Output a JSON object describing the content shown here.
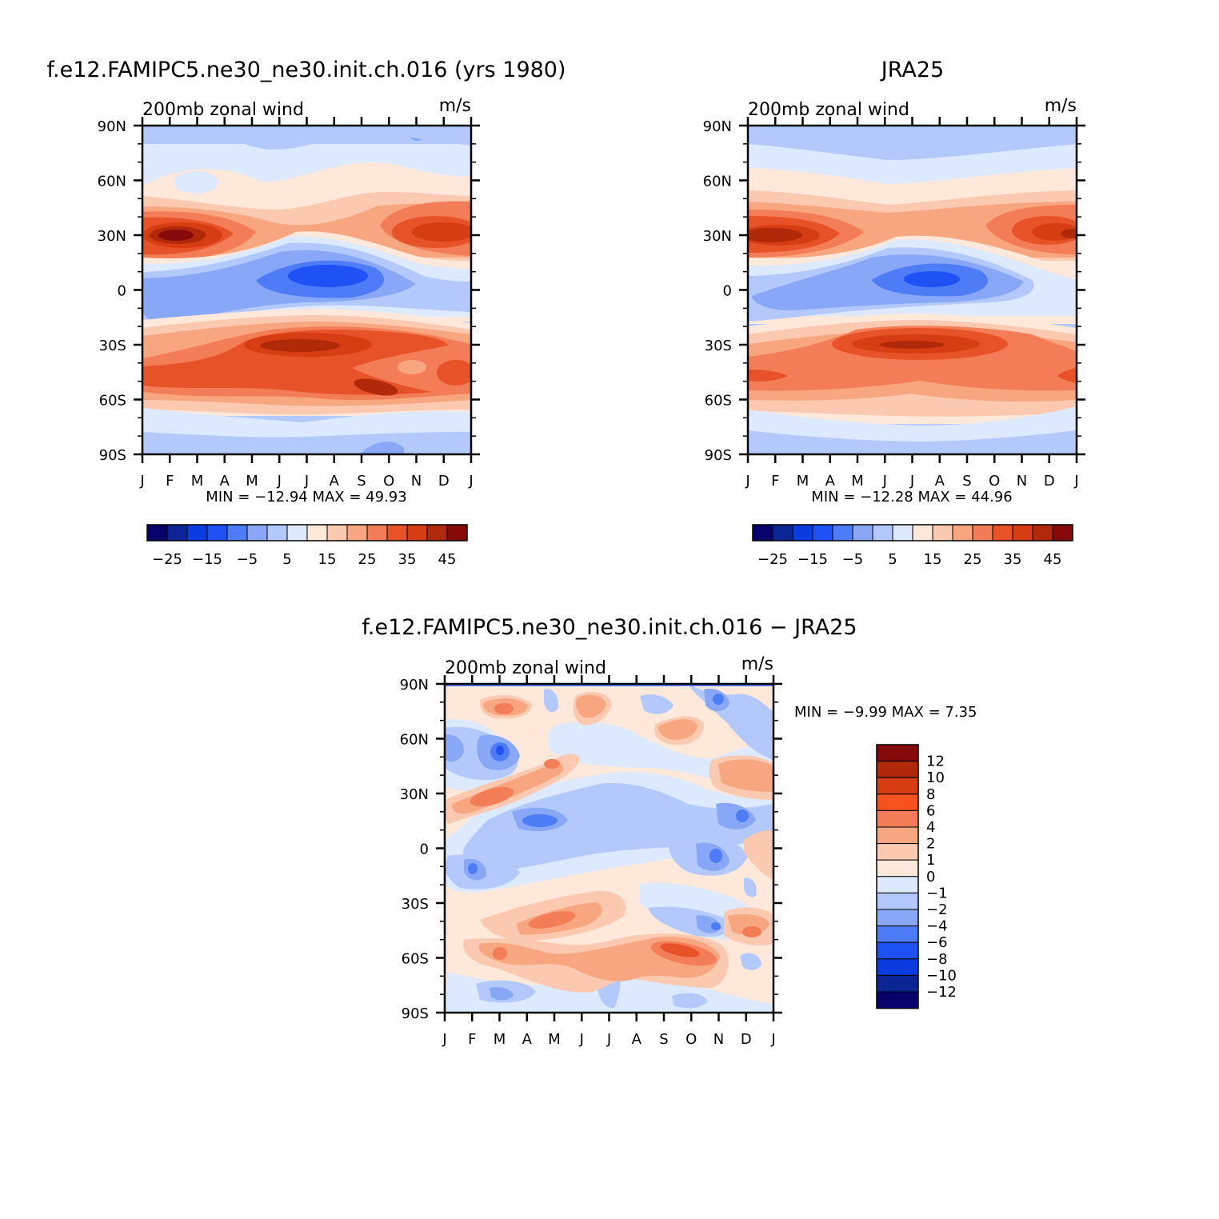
{
  "colors": {
    "palette_abs": [
      "#08006b",
      "#0b2595",
      "#0a3ce0",
      "#1f52f5",
      "#4d7cf6",
      "#88a8f7",
      "#b3c8fb",
      "#dde9fe",
      "#fde8da",
      "#fbc8b0",
      "#f8a680",
      "#f27d56",
      "#e85228",
      "#d73d12",
      "#b02a09",
      "#870a0a"
    ],
    "palette_diff": [
      "#870a0a",
      "#b02a09",
      "#d73d12",
      "#f5521e",
      "#f27d56",
      "#f8a680",
      "#fbc8b0",
      "#fde8da",
      "#dde9fe",
      "#b3c8fb",
      "#88a8f7",
      "#4d7cf6",
      "#1f52f5",
      "#0a3ce0",
      "#0b2595",
      "#08006b"
    ]
  },
  "panels": [
    {
      "id": "model",
      "title": "f.e12.FAMIPC5.ne30_ne30.init.ch.016 (yrs 1980)",
      "left_label": "200mb zonal wind",
      "right_label": "m/s",
      "stats_text": "MIN = −12.94 MAX =   49.93",
      "colorbar_labels": [
        "−25",
        "−15",
        "−5",
        "5",
        "15",
        "25",
        "35",
        "45"
      ]
    },
    {
      "id": "obs",
      "title": "JRA25",
      "left_label": "200mb zonal wind",
      "right_label": "m/s",
      "stats_text": "MIN = −12.28 MAX =   44.96",
      "colorbar_labels": [
        "−25",
        "−15",
        "−5",
        "5",
        "15",
        "25",
        "35",
        "45"
      ]
    },
    {
      "id": "diff",
      "title": "f.e12.FAMIPC5.ne30_ne30.init.ch.016 − JRA25",
      "left_label": "200mb zonal wind",
      "right_label": "m/s",
      "stats_text": "MIN =   −9.99 MAX =     7.35",
      "colorbar_labels": [
        "12",
        "10",
        "8",
        "6",
        "4",
        "2",
        "1",
        "0",
        "−1",
        "−2",
        "−4",
        "−6",
        "−8",
        "−10",
        "−12"
      ]
    }
  ],
  "chart_data": [
    {
      "type": "heatmap",
      "title": "f.e12.FAMIPC5.ne30_ne30.init.ch.016 (yrs 1980)",
      "x_categories": [
        "J",
        "F",
        "M",
        "A",
        "M",
        "J",
        "J",
        "A",
        "S",
        "O",
        "N",
        "D",
        "J"
      ],
      "y_ticks": [
        "90N",
        "60N",
        "30N",
        "0",
        "30S",
        "60S",
        "90S"
      ],
      "ylim": [
        -90,
        90
      ],
      "units": "m/s",
      "min": -12.94,
      "max": 49.93,
      "contour_levels": [
        -30,
        -25,
        -20,
        -15,
        -10,
        -5,
        0,
        5,
        10,
        15,
        20,
        25,
        30,
        35,
        40,
        45,
        50
      ],
      "features": [
        {
          "kind": "max",
          "lat": 30,
          "month_index": 1,
          "value": 49
        },
        {
          "kind": "max",
          "lat": 33,
          "month_index": 12,
          "value": 42
        },
        {
          "kind": "max",
          "lat": -30,
          "month_index": 6,
          "value": 42
        },
        {
          "kind": "max",
          "lat": -52,
          "month_index": 8.2,
          "value": 38
        },
        {
          "kind": "min",
          "lat": 5,
          "month_index": 6.8,
          "value": -12
        }
      ]
    },
    {
      "type": "heatmap",
      "title": "JRA25",
      "x_categories": [
        "J",
        "F",
        "M",
        "A",
        "M",
        "J",
        "J",
        "A",
        "S",
        "O",
        "N",
        "D",
        "J"
      ],
      "y_ticks": [
        "90N",
        "60N",
        "30N",
        "0",
        "30S",
        "60S",
        "90S"
      ],
      "ylim": [
        -90,
        90
      ],
      "units": "m/s",
      "min": -12.28,
      "max": 44.96,
      "contour_levels": [
        -30,
        -25,
        -20,
        -15,
        -10,
        -5,
        0,
        5,
        10,
        15,
        20,
        25,
        30,
        35,
        40,
        45,
        50
      ],
      "features": [
        {
          "kind": "max",
          "lat": 30,
          "month_index": 0.5,
          "value": 44
        },
        {
          "kind": "max",
          "lat": 31,
          "month_index": 12,
          "value": 43
        },
        {
          "kind": "max",
          "lat": -30,
          "month_index": 6,
          "value": 40
        },
        {
          "kind": "min",
          "lat": 5,
          "month_index": 6.3,
          "value": -12
        }
      ]
    },
    {
      "type": "heatmap",
      "title": "f.e12.FAMIPC5.ne30_ne30.init.ch.016 − JRA25",
      "x_categories": [
        "J",
        "F",
        "M",
        "A",
        "M",
        "J",
        "J",
        "A",
        "S",
        "O",
        "N",
        "D",
        "J"
      ],
      "y_ticks": [
        "90N",
        "60N",
        "30N",
        "0",
        "30S",
        "60S",
        "90S"
      ],
      "ylim": [
        -90,
        90
      ],
      "units": "m/s",
      "min": -9.99,
      "max": 7.35,
      "contour_levels": [
        -14,
        -12,
        -10,
        -8,
        -6,
        -4,
        -2,
        -1,
        0,
        1,
        2,
        4,
        6,
        8,
        10,
        12,
        14
      ],
      "features": [
        {
          "kind": "min",
          "lat": 55,
          "month_index": 2,
          "value": -8
        },
        {
          "kind": "min",
          "lat": 16,
          "month_index": 3.5,
          "value": -7
        },
        {
          "kind": "min",
          "lat": -10,
          "month_index": 1,
          "value": -6
        },
        {
          "kind": "min",
          "lat": 18,
          "month_index": 11,
          "value": -7
        },
        {
          "kind": "min",
          "lat": -5,
          "month_index": 10,
          "value": -6
        },
        {
          "kind": "max",
          "lat": -55,
          "month_index": 8.5,
          "value": 7
        },
        {
          "kind": "max",
          "lat": 28,
          "month_index": 1.5,
          "value": 5
        },
        {
          "kind": "max",
          "lat": -40,
          "month_index": 5,
          "value": 5
        }
      ]
    }
  ]
}
